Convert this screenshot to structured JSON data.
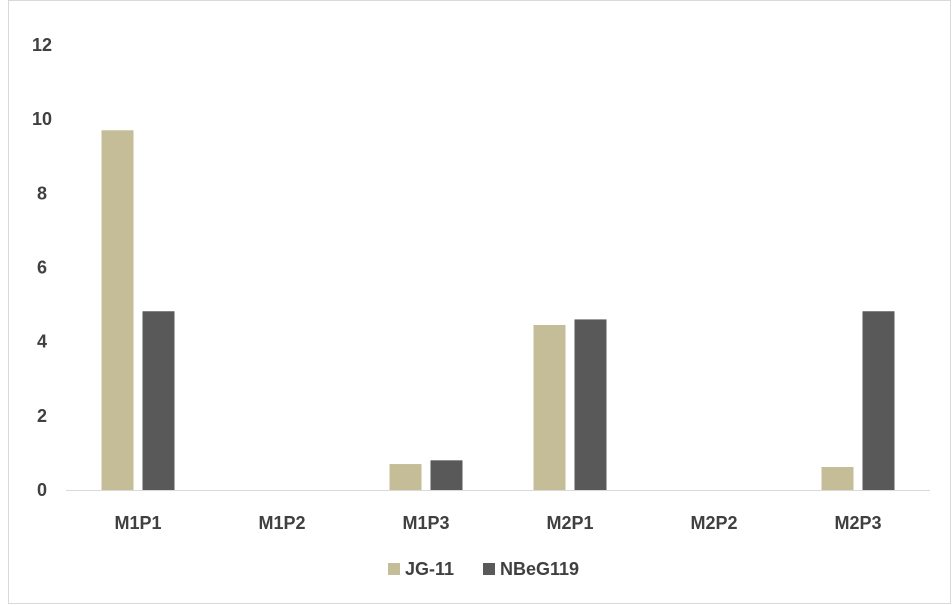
{
  "chart_data": {
    "type": "bar",
    "title": "",
    "xlabel": "",
    "ylabel": "",
    "categories": [
      "M1P1",
      "M1P2",
      "M1P3",
      "M2P1",
      "M2P2",
      "M2P3"
    ],
    "series": [
      {
        "name": "JG-11",
        "color": "#c4bd97",
        "values": [
          9.7,
          0,
          0.7,
          4.45,
          0,
          0.62
        ]
      },
      {
        "name": "NBeG119",
        "color": "#595959",
        "values": [
          4.82,
          0,
          0.8,
          4.6,
          0,
          4.82
        ]
      }
    ],
    "ylim": [
      0,
      12
    ],
    "yticks": [
      0,
      2,
      4,
      6,
      8,
      10,
      12
    ],
    "grid": false,
    "legend_position": "bottom-center"
  }
}
